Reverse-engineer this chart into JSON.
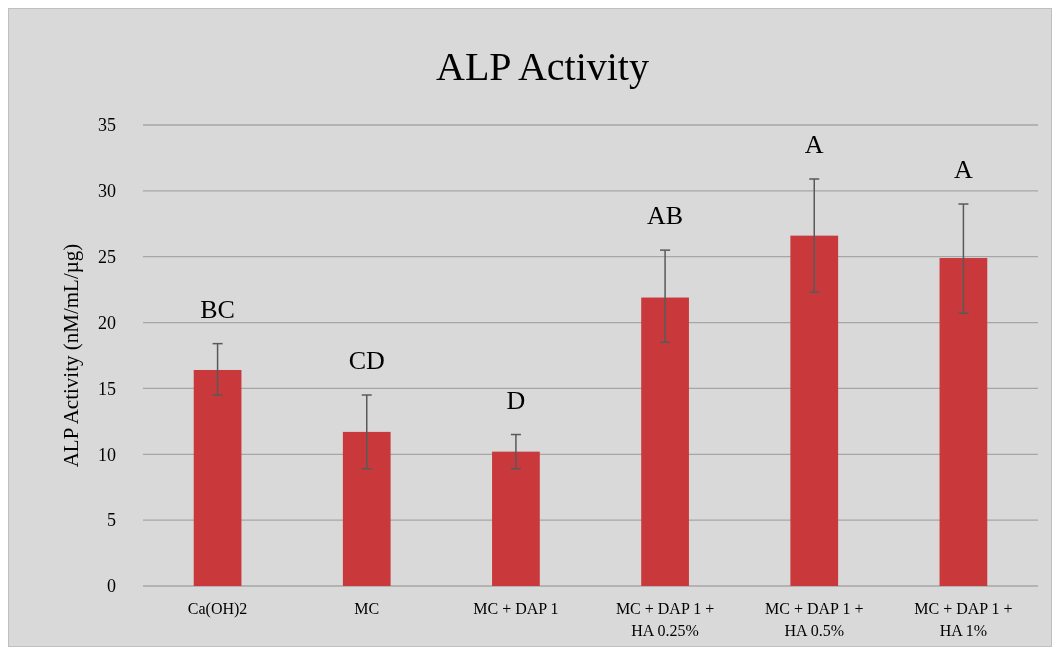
{
  "chart_data": {
    "type": "bar",
    "title": "ALP Activity",
    "ylabel": "ALP Activity (nM/mL/µg)",
    "categories": [
      "Ca(OH)2",
      "MC",
      "MC + DAP 1",
      "MC + DAP 1 + HA 0.25%",
      "MC + DAP 1 + HA 0.5%",
      "MC + DAP 1 + HA 1%"
    ],
    "values": [
      16.4,
      11.7,
      10.2,
      21.9,
      26.6,
      24.9
    ],
    "errors": [
      [
        14.5,
        18.4
      ],
      [
        8.9,
        14.5
      ],
      [
        8.9,
        11.5
      ],
      [
        18.5,
        25.5
      ],
      [
        22.3,
        30.9
      ],
      [
        20.7,
        29.0
      ]
    ],
    "color": "#c9393b",
    "ylim": [
      0,
      35
    ],
    "yticks": [
      0,
      5,
      10,
      15,
      20,
      25,
      30,
      35
    ],
    "grid": "y",
    "annotations": [
      "BC",
      "CD",
      "D",
      "AB",
      "A",
      "A"
    ]
  }
}
